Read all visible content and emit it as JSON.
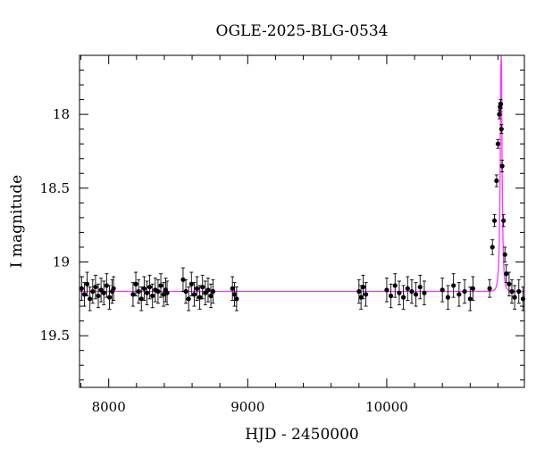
{
  "chart_data": {
    "type": "scatter",
    "title": "OGLE-2025-BLG-0534",
    "xlabel": "HJD - 2450000",
    "ylabel": "I magnitude",
    "xlim": [
      7790,
      10990
    ],
    "ylim": [
      19.85,
      17.6
    ],
    "y_inverted": true,
    "x_ticks": [
      8000,
      9000,
      10000
    ],
    "y_ticks": [
      18,
      18.5,
      19,
      19.5
    ],
    "x_tick_labels": [
      "8000",
      "9000",
      "10000"
    ],
    "y_tick_labels": [
      "18",
      "18.5",
      "19",
      "19.5"
    ],
    "grid": false,
    "legend": "none",
    "colors": {
      "data": "#000000",
      "model": "#ff33ff",
      "axes": "#000000"
    },
    "model": {
      "name": "",
      "baseline_mag": 19.2,
      "t0": 10823,
      "tE": 14,
      "u0": 0.125
    },
    "series": [
      {
        "x": [
          7805,
          7825,
          7845,
          7865,
          7885,
          7905,
          7925,
          7945,
          7965,
          7985,
          8005,
          8025,
          8035,
          8175,
          8195,
          8215,
          8235,
          8255,
          8275,
          8295,
          8315,
          8335,
          8355,
          8375,
          8395,
          8410,
          8420,
          8535,
          8555,
          8575,
          8595,
          8615,
          8635,
          8655,
          8675,
          8695,
          8715,
          8735,
          8750,
          8890,
          8905,
          8920,
          9800,
          9815,
          9830,
          9850,
          10000,
          10030,
          10060,
          10090,
          10120,
          10150,
          10180,
          10210,
          10240,
          10270,
          10400,
          10440,
          10480,
          10520,
          10560,
          10600,
          10620,
          10740,
          10760,
          10775,
          10790,
          10800,
          10810,
          10815,
          10820,
          10825,
          10830,
          10840,
          10850,
          10860,
          10880,
          10900,
          10920,
          10950,
          10980
        ],
        "y": [
          19.18,
          19.22,
          19.15,
          19.25,
          19.2,
          19.17,
          19.23,
          19.19,
          19.21,
          19.16,
          19.24,
          19.2,
          19.18,
          19.22,
          19.15,
          19.2,
          19.25,
          19.18,
          19.21,
          19.17,
          19.23,
          19.19,
          19.2,
          19.16,
          19.22,
          19.19,
          19.21,
          19.12,
          19.2,
          19.25,
          19.15,
          19.22,
          19.18,
          19.24,
          19.17,
          19.21,
          19.19,
          19.23,
          19.2,
          19.18,
          19.22,
          19.25,
          19.2,
          19.24,
          19.17,
          19.22,
          19.19,
          19.23,
          19.16,
          19.21,
          19.24,
          19.18,
          19.2,
          19.22,
          19.17,
          19.21,
          19.19,
          19.24,
          19.16,
          19.22,
          19.2,
          19.25,
          19.18,
          19.18,
          18.9,
          18.72,
          18.45,
          18.2,
          18.0,
          17.95,
          17.93,
          18.1,
          18.35,
          18.72,
          18.95,
          19.08,
          19.15,
          19.2,
          19.24,
          19.2,
          19.25
        ],
        "yerr": [
          0.08,
          0.08,
          0.08,
          0.08,
          0.08,
          0.08,
          0.08,
          0.08,
          0.08,
          0.08,
          0.08,
          0.08,
          0.08,
          0.08,
          0.08,
          0.08,
          0.08,
          0.08,
          0.08,
          0.08,
          0.08,
          0.08,
          0.08,
          0.08,
          0.08,
          0.08,
          0.08,
          0.08,
          0.08,
          0.08,
          0.08,
          0.08,
          0.08,
          0.08,
          0.08,
          0.08,
          0.08,
          0.08,
          0.08,
          0.08,
          0.08,
          0.08,
          0.08,
          0.08,
          0.08,
          0.08,
          0.08,
          0.08,
          0.08,
          0.08,
          0.08,
          0.08,
          0.08,
          0.08,
          0.08,
          0.08,
          0.08,
          0.08,
          0.08,
          0.08,
          0.08,
          0.08,
          0.08,
          0.06,
          0.05,
          0.04,
          0.04,
          0.03,
          0.03,
          0.03,
          0.03,
          0.03,
          0.04,
          0.04,
          0.05,
          0.06,
          0.08,
          0.08,
          0.08,
          0.08,
          0.08
        ]
      }
    ]
  }
}
